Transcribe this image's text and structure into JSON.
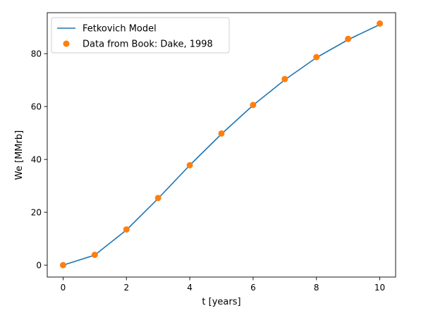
{
  "chart_data": {
    "type": "line",
    "title": "",
    "xlabel": "t [years]",
    "ylabel": "We [MMrb]",
    "xlim": [
      -0.5,
      10.5
    ],
    "ylim": [
      -4.5,
      95.5
    ],
    "xticks": [
      0,
      2,
      4,
      6,
      8,
      10
    ],
    "yticks": [
      0,
      20,
      40,
      60,
      80
    ],
    "grid": false,
    "legend": "top-left",
    "series": [
      {
        "name": "Fetkovich Model",
        "kind": "line",
        "color": "#1f77b4",
        "x": [
          0,
          1,
          2,
          3,
          4,
          5,
          6,
          7,
          8,
          9,
          10
        ],
        "y": [
          0,
          3.8,
          13.3,
          25.2,
          37.8,
          49.6,
          60.5,
          70.1,
          78.5,
          85.3,
          91.0
        ]
      },
      {
        "name": "Data from Book: Dake, 1998",
        "kind": "scatter",
        "color": "#ff7f0e",
        "x": [
          0,
          1,
          2,
          3,
          4,
          5,
          6,
          7,
          8,
          9,
          10
        ],
        "y": [
          0,
          3.9,
          13.5,
          25.4,
          37.8,
          49.8,
          60.6,
          70.4,
          78.7,
          85.6,
          91.4
        ]
      }
    ]
  }
}
